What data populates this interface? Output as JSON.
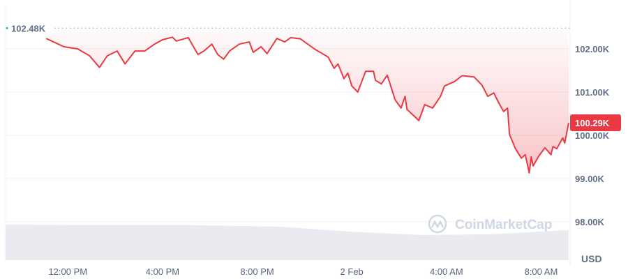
{
  "chart_data": {
    "type": "line",
    "series": [
      {
        "color": "#ea3943",
        "points": [
          [
            "1 Feb 11:05",
            102.24
          ],
          [
            "1 Feb 11:50",
            102.05
          ],
          [
            "1 Feb 12:25",
            102.0
          ],
          [
            "1 Feb 12:55",
            101.84
          ],
          [
            "1 Feb 13:20",
            101.57
          ],
          [
            "1 Feb 13:40",
            101.84
          ],
          [
            "1 Feb 14:05",
            101.95
          ],
          [
            "1 Feb 14:25",
            101.65
          ],
          [
            "1 Feb 14:50",
            101.95
          ],
          [
            "1 Feb 15:15",
            101.95
          ],
          [
            "1 Feb 15:40",
            102.11
          ],
          [
            "1 Feb 16:00",
            102.21
          ],
          [
            "1 Feb 16:25",
            102.27
          ],
          [
            "1 Feb 16:35",
            102.18
          ],
          [
            "1 Feb 17:05",
            102.26
          ],
          [
            "1 Feb 17:30",
            101.87
          ],
          [
            "1 Feb 17:45",
            101.95
          ],
          [
            "1 Feb 18:05",
            102.11
          ],
          [
            "1 Feb 18:20",
            101.87
          ],
          [
            "1 Feb 18:35",
            101.76
          ],
          [
            "1 Feb 18:50",
            101.95
          ],
          [
            "1 Feb 19:15",
            102.11
          ],
          [
            "1 Feb 19:40",
            102.16
          ],
          [
            "1 Feb 19:50",
            101.92
          ],
          [
            "1 Feb 20:10",
            102.05
          ],
          [
            "1 Feb 20:25",
            101.89
          ],
          [
            "1 Feb 20:50",
            102.24
          ],
          [
            "1 Feb 21:10",
            102.16
          ],
          [
            "1 Feb 21:25",
            102.26
          ],
          [
            "1 Feb 21:50",
            102.23
          ],
          [
            "1 Feb 22:25",
            102.0
          ],
          [
            "1 Feb 23:00",
            101.81
          ],
          [
            "1 Feb 23:15",
            101.55
          ],
          [
            "1 Feb 23:25",
            101.65
          ],
          [
            "1 Feb 23:40",
            101.31
          ],
          [
            "1 Feb 23:50",
            101.44
          ],
          [
            "2 Feb 00:00",
            101.14
          ],
          [
            "2 Feb 00:15",
            101.0
          ],
          [
            "2 Feb 00:35",
            101.48
          ],
          [
            "2 Feb 00:55",
            101.48
          ],
          [
            "2 Feb 01:00",
            101.27
          ],
          [
            "2 Feb 01:15",
            101.19
          ],
          [
            "2 Feb 01:30",
            101.39
          ],
          [
            "2 Feb 01:50",
            100.82
          ],
          [
            "2 Feb 02:05",
            100.63
          ],
          [
            "2 Feb 02:15",
            100.9
          ],
          [
            "2 Feb 02:20",
            100.6
          ],
          [
            "2 Feb 02:50",
            100.34
          ],
          [
            "2 Feb 03:05",
            100.71
          ],
          [
            "2 Feb 03:25",
            100.63
          ],
          [
            "2 Feb 03:45",
            100.9
          ],
          [
            "2 Feb 03:55",
            101.14
          ],
          [
            "2 Feb 04:20",
            101.24
          ],
          [
            "2 Feb 04:40",
            101.38
          ],
          [
            "2 Feb 05:10",
            101.35
          ],
          [
            "2 Feb 05:30",
            101.16
          ],
          [
            "2 Feb 05:45",
            100.9
          ],
          [
            "2 Feb 06:00",
            100.98
          ],
          [
            "2 Feb 06:15",
            100.71
          ],
          [
            "2 Feb 06:25",
            100.55
          ],
          [
            "2 Feb 06:35",
            100.63
          ],
          [
            "2 Feb 06:40",
            100.02
          ],
          [
            "2 Feb 06:55",
            99.69
          ],
          [
            "2 Feb 07:10",
            99.47
          ],
          [
            "2 Feb 07:20",
            99.55
          ],
          [
            "2 Feb 07:30",
            99.13
          ],
          [
            "2 Feb 07:35",
            99.5
          ],
          [
            "2 Feb 07:40",
            99.29
          ],
          [
            "2 Feb 07:55",
            99.53
          ],
          [
            "2 Feb 08:10",
            99.71
          ],
          [
            "2 Feb 08:25",
            99.55
          ],
          [
            "2 Feb 08:30",
            99.74
          ],
          [
            "2 Feb 08:40",
            99.69
          ],
          [
            "2 Feb 08:55",
            99.94
          ],
          [
            "2 Feb 09:00",
            99.82
          ],
          [
            "2 Feb 09:10",
            100.29
          ]
        ]
      }
    ],
    "volume": {
      "color": "#e9ebf0",
      "points": [
        [
          "1 Feb 09:22",
          0.85
        ],
        [
          "1 Feb 13:00",
          0.84
        ],
        [
          "1 Feb 17:00",
          0.84
        ],
        [
          "1 Feb 21:00",
          0.8
        ],
        [
          "2 Feb 00:00",
          0.68
        ],
        [
          "2 Feb 03:00",
          0.6
        ],
        [
          "2 Feb 06:00",
          0.62
        ],
        [
          "2 Feb 09:10",
          0.72
        ]
      ]
    },
    "xlim": [
      "1 Feb 09:22",
      "2 Feb 09:10"
    ],
    "ylim": [
      97.11,
      103.05
    ],
    "yticks": [
      {
        "value": 102,
        "label": "102.00K"
      },
      {
        "value": 101,
        "label": "101.00K"
      },
      {
        "value": 100,
        "label": "100.00K"
      },
      {
        "value": 99,
        "label": "99.00K"
      },
      {
        "value": 98,
        "label": "98.00K"
      }
    ],
    "xticks": [
      {
        "time": "1 Feb 12:00",
        "label": "12:00 PM"
      },
      {
        "time": "1 Feb 16:00",
        "label": "4:00 PM"
      },
      {
        "time": "1 Feb 20:00",
        "label": "8:00 PM"
      },
      {
        "time": "2 Feb 00:00",
        "label": "2 Feb"
      },
      {
        "time": "2 Feb 04:00",
        "label": "4:00 AM"
      },
      {
        "time": "2 Feb 08:00",
        "label": "8:00 AM"
      }
    ],
    "reference_line": {
      "value": 102.48,
      "label": "102.48K"
    },
    "current_price": {
      "value": 100.29,
      "label": "100.29K",
      "color": "#ea3943"
    },
    "unit_label": "USD",
    "grid": true,
    "watermark": "CoinMarketCap"
  }
}
